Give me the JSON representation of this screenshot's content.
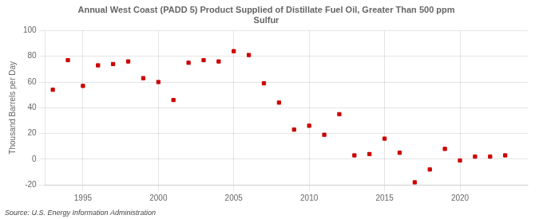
{
  "chart_data": {
    "type": "scatter",
    "title": "Annual West Coast (PADD 5) Product Supplied of Distillate Fuel Oil, Greater Than 500 ppm\nSulfur",
    "ylabel": "Thousand Barrels per Day",
    "annotations": [
      "Source: U.S. Energy Information Administration"
    ],
    "x": [
      1993,
      1994,
      1995,
      1996,
      1997,
      1998,
      1999,
      2000,
      2001,
      2002,
      2003,
      2004,
      2005,
      2006,
      2007,
      2008,
      2009,
      2010,
      2011,
      2012,
      2013,
      2014,
      2015,
      2016,
      2017,
      2018,
      2019,
      2020,
      2021,
      2022,
      2023
    ],
    "values": [
      54,
      77,
      57,
      73,
      74,
      76,
      63,
      60,
      46,
      75,
      77,
      76,
      84,
      81,
      59,
      44,
      23,
      26,
      19,
      35,
      3,
      4,
      16,
      5,
      -18,
      -8,
      8,
      -1,
      2,
      2,
      3
    ],
    "color": "#cc0000",
    "marker": "square",
    "xlim": [
      1992.5,
      2024.5
    ],
    "xticks": [
      1995,
      2000,
      2005,
      2010,
      2015,
      2020
    ],
    "ylim": [
      -20,
      100
    ],
    "yticks": [
      -20,
      0,
      20,
      40,
      60,
      80,
      100
    ],
    "grid": true
  }
}
